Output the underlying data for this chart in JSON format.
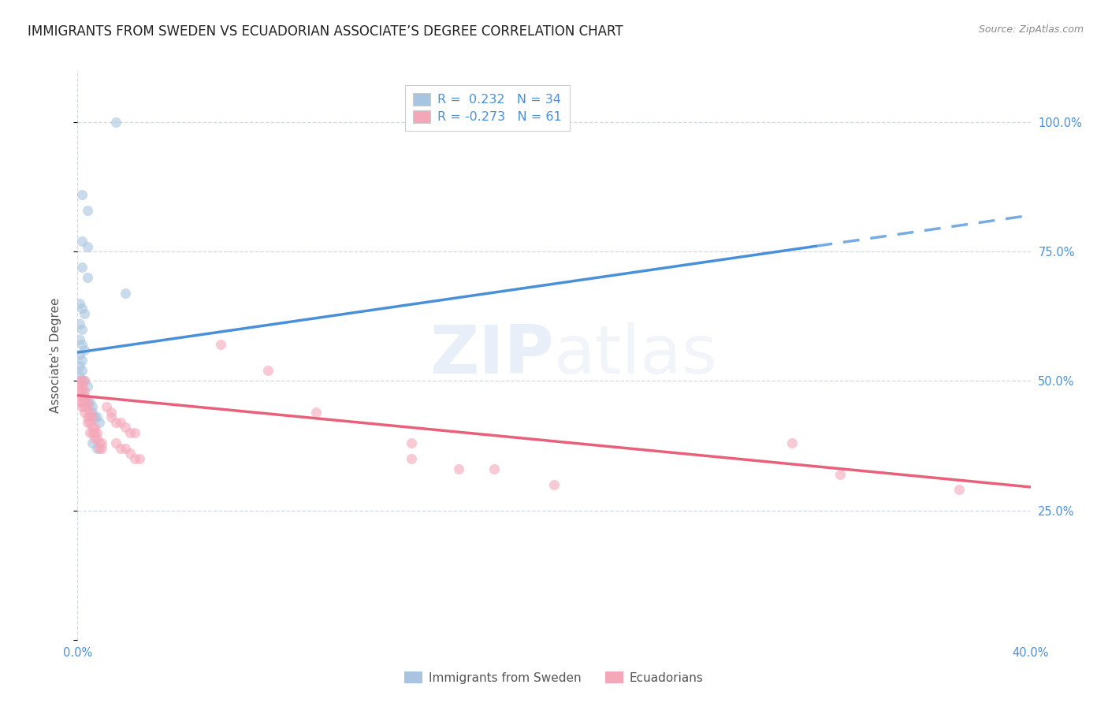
{
  "title": "IMMIGRANTS FROM SWEDEN VS ECUADORIAN ASSOCIATE’S DEGREE CORRELATION CHART",
  "source": "Source: ZipAtlas.com",
  "ylabel": "Associate's Degree",
  "watermark": "ZIPatlas",
  "blue_color": "#a8c4e0",
  "pink_color": "#f4a7b9",
  "blue_line_color": "#4a90d9",
  "pink_line_color": "#e8607a",
  "blue_scatter": [
    [
      0.002,
      0.86
    ],
    [
      0.004,
      0.83
    ],
    [
      0.002,
      0.77
    ],
    [
      0.004,
      0.76
    ],
    [
      0.002,
      0.72
    ],
    [
      0.004,
      0.7
    ],
    [
      0.001,
      0.65
    ],
    [
      0.002,
      0.64
    ],
    [
      0.003,
      0.63
    ],
    [
      0.001,
      0.61
    ],
    [
      0.002,
      0.6
    ],
    [
      0.001,
      0.58
    ],
    [
      0.002,
      0.57
    ],
    [
      0.003,
      0.56
    ],
    [
      0.001,
      0.55
    ],
    [
      0.002,
      0.54
    ],
    [
      0.001,
      0.53
    ],
    [
      0.002,
      0.52
    ],
    [
      0.001,
      0.51
    ],
    [
      0.002,
      0.5
    ],
    [
      0.003,
      0.5
    ],
    [
      0.004,
      0.49
    ],
    [
      0.003,
      0.47
    ],
    [
      0.004,
      0.46
    ],
    [
      0.005,
      0.46
    ],
    [
      0.006,
      0.45
    ],
    [
      0.006,
      0.44
    ],
    [
      0.007,
      0.43
    ],
    [
      0.008,
      0.43
    ],
    [
      0.009,
      0.42
    ],
    [
      0.006,
      0.38
    ],
    [
      0.008,
      0.37
    ],
    [
      0.02,
      0.67
    ],
    [
      0.016,
      1.0
    ]
  ],
  "pink_scatter": [
    [
      0.001,
      0.5
    ],
    [
      0.002,
      0.5
    ],
    [
      0.003,
      0.5
    ],
    [
      0.001,
      0.49
    ],
    [
      0.002,
      0.49
    ],
    [
      0.001,
      0.48
    ],
    [
      0.002,
      0.48
    ],
    [
      0.003,
      0.48
    ],
    [
      0.002,
      0.47
    ],
    [
      0.003,
      0.47
    ],
    [
      0.001,
      0.46
    ],
    [
      0.002,
      0.46
    ],
    [
      0.003,
      0.46
    ],
    [
      0.004,
      0.46
    ],
    [
      0.002,
      0.45
    ],
    [
      0.003,
      0.45
    ],
    [
      0.004,
      0.45
    ],
    [
      0.005,
      0.44
    ],
    [
      0.003,
      0.44
    ],
    [
      0.004,
      0.43
    ],
    [
      0.005,
      0.43
    ],
    [
      0.006,
      0.43
    ],
    [
      0.004,
      0.42
    ],
    [
      0.005,
      0.42
    ],
    [
      0.006,
      0.41
    ],
    [
      0.007,
      0.41
    ],
    [
      0.005,
      0.4
    ],
    [
      0.006,
      0.4
    ],
    [
      0.007,
      0.4
    ],
    [
      0.008,
      0.4
    ],
    [
      0.007,
      0.39
    ],
    [
      0.008,
      0.39
    ],
    [
      0.009,
      0.38
    ],
    [
      0.01,
      0.38
    ],
    [
      0.009,
      0.37
    ],
    [
      0.01,
      0.37
    ],
    [
      0.012,
      0.45
    ],
    [
      0.014,
      0.44
    ],
    [
      0.014,
      0.43
    ],
    [
      0.016,
      0.42
    ],
    [
      0.018,
      0.42
    ],
    [
      0.02,
      0.41
    ],
    [
      0.022,
      0.4
    ],
    [
      0.024,
      0.4
    ],
    [
      0.016,
      0.38
    ],
    [
      0.018,
      0.37
    ],
    [
      0.02,
      0.37
    ],
    [
      0.022,
      0.36
    ],
    [
      0.024,
      0.35
    ],
    [
      0.026,
      0.35
    ],
    [
      0.06,
      0.57
    ],
    [
      0.08,
      0.52
    ],
    [
      0.1,
      0.44
    ],
    [
      0.14,
      0.38
    ],
    [
      0.14,
      0.35
    ],
    [
      0.16,
      0.33
    ],
    [
      0.175,
      0.33
    ],
    [
      0.2,
      0.3
    ],
    [
      0.3,
      0.38
    ],
    [
      0.32,
      0.32
    ],
    [
      0.37,
      0.29
    ]
  ],
  "xlim": [
    0.0,
    0.4
  ],
  "ylim": [
    0.0,
    1.1
  ],
  "xtick_positions": [
    0.0,
    0.1,
    0.2,
    0.3,
    0.4
  ],
  "xtick_labels": [
    "0.0%",
    "",
    "",
    "",
    "40.0%"
  ],
  "ytick_positions": [
    0.0,
    0.25,
    0.5,
    0.75,
    1.0
  ],
  "ytick_labels_right": [
    "",
    "25.0%",
    "50.0%",
    "75.0%",
    "100.0%"
  ],
  "bg_color": "#ffffff",
  "grid_color": "#d0d8e8",
  "title_fontsize": 12,
  "tick_fontsize": 10.5,
  "scatter_size": 90,
  "scatter_alpha": 0.6,
  "line_width": 2.5,
  "blue_line_x0": 0.0,
  "blue_line_y0": 0.555,
  "blue_line_x1": 0.4,
  "blue_line_y1": 0.82,
  "blue_line_solid_end": 0.31,
  "pink_line_x0": 0.0,
  "pink_line_y0": 0.472,
  "pink_line_x1": 0.4,
  "pink_line_y1": 0.295
}
